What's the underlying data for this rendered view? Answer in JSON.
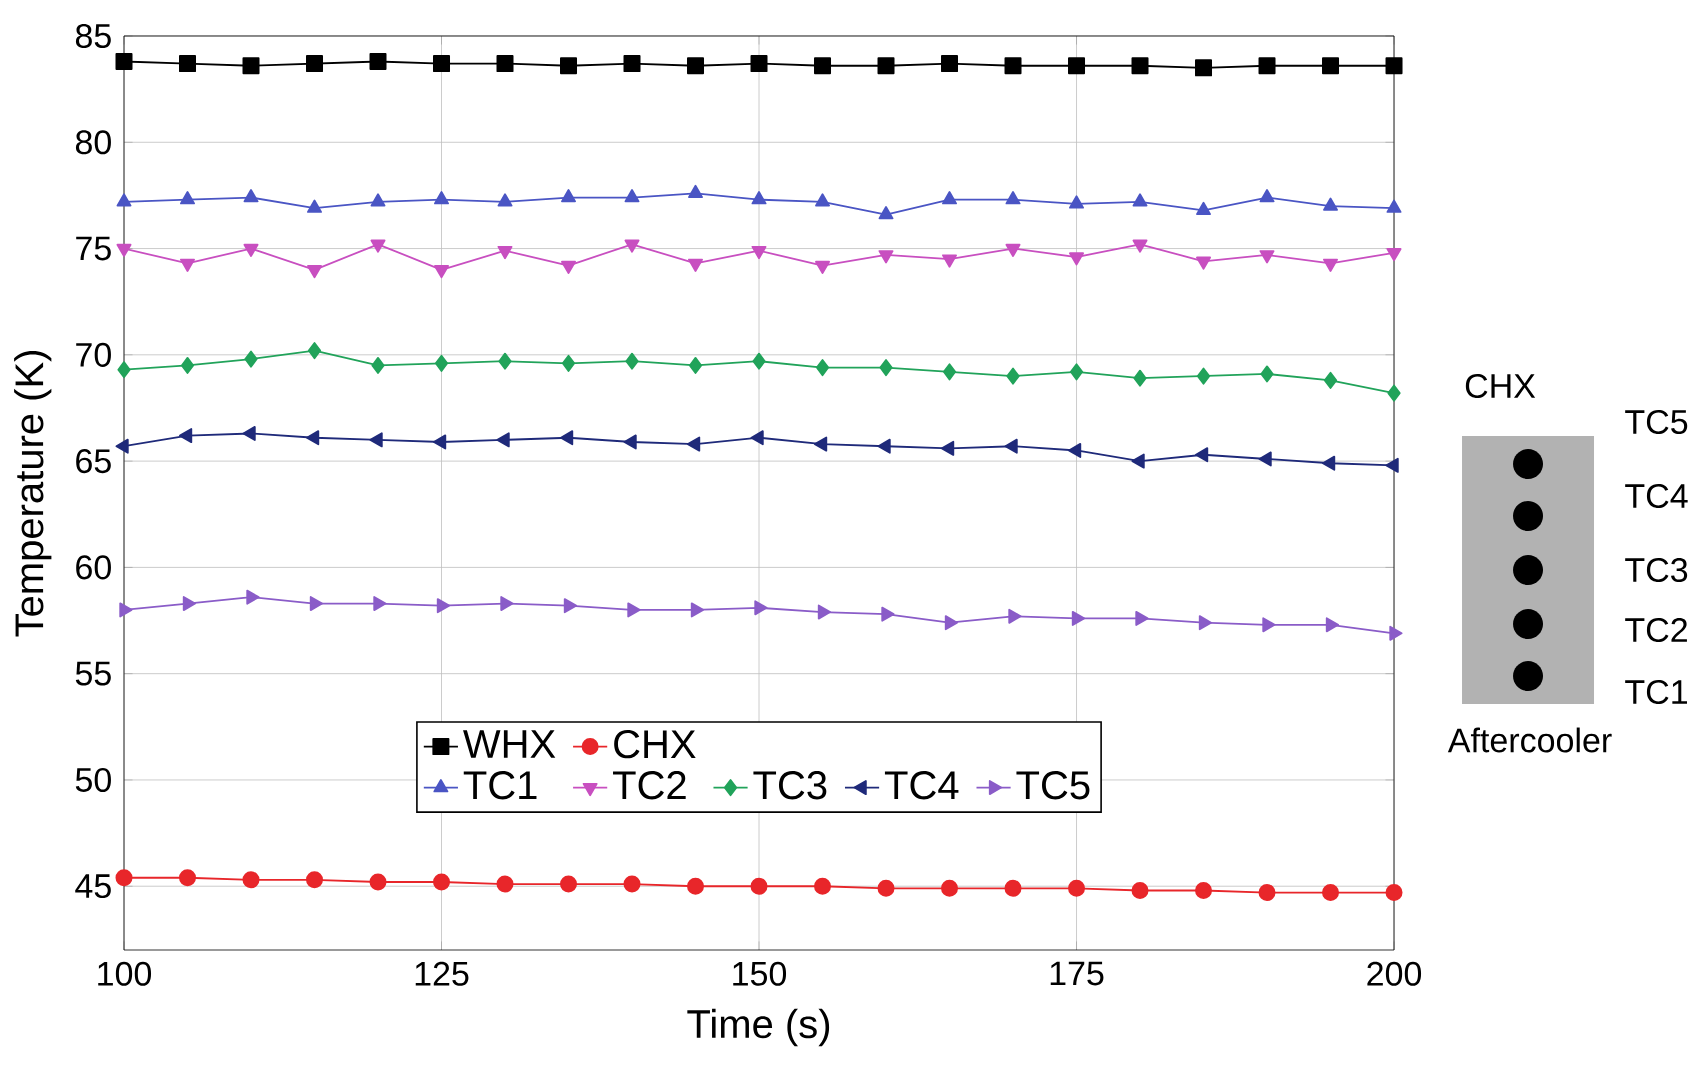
{
  "chart_data": {
    "type": "line",
    "xlabel": "Time (s)",
    "ylabel": "Temperature (K)",
    "x": [
      100,
      105,
      110,
      115,
      120,
      125,
      130,
      135,
      140,
      145,
      150,
      155,
      160,
      165,
      170,
      175,
      180,
      185,
      190,
      195,
      200
    ],
    "xlim": [
      100,
      200
    ],
    "xticks": [
      100,
      125,
      150,
      175,
      200
    ],
    "ylim": [
      42,
      85
    ],
    "yticks": [
      45,
      50,
      55,
      60,
      65,
      70,
      75,
      80,
      85
    ],
    "grid": true,
    "legend": "bottom",
    "series": [
      {
        "name": "WHX",
        "color": "#000000",
        "marker": "square",
        "values": [
          83.8,
          83.7,
          83.6,
          83.7,
          83.8,
          83.7,
          83.7,
          83.6,
          83.7,
          83.6,
          83.7,
          83.6,
          83.6,
          83.7,
          83.6,
          83.6,
          83.6,
          83.5,
          83.6,
          83.6,
          83.6
        ]
      },
      {
        "name": "CHX",
        "color": "#e8262a",
        "marker": "circle",
        "values": [
          45.4,
          45.4,
          45.3,
          45.3,
          45.2,
          45.2,
          45.1,
          45.1,
          45.1,
          45.0,
          45.0,
          45.0,
          44.9,
          44.9,
          44.9,
          44.9,
          44.8,
          44.8,
          44.7,
          44.7,
          44.7
        ]
      },
      {
        "name": "TC1",
        "color": "#4a55c4",
        "marker": "triangle",
        "values": [
          77.2,
          77.3,
          77.4,
          76.9,
          77.2,
          77.3,
          77.2,
          77.4,
          77.4,
          77.6,
          77.3,
          77.2,
          76.6,
          77.3,
          77.3,
          77.1,
          77.2,
          76.8,
          77.4,
          77.0,
          76.9
        ]
      },
      {
        "name": "TC2",
        "color": "#c84fc0",
        "marker": "triangle-down",
        "values": [
          75.0,
          74.3,
          75.0,
          74.0,
          75.2,
          74.0,
          74.9,
          74.2,
          75.2,
          74.3,
          74.9,
          74.2,
          74.7,
          74.5,
          75.0,
          74.6,
          75.2,
          74.4,
          74.7,
          74.3,
          74.8
        ]
      },
      {
        "name": "TC3",
        "color": "#21a35a",
        "marker": "diamond",
        "values": [
          69.3,
          69.5,
          69.8,
          70.2,
          69.5,
          69.6,
          69.7,
          69.6,
          69.7,
          69.5,
          69.7,
          69.4,
          69.4,
          69.2,
          69.0,
          69.2,
          68.9,
          69.0,
          69.1,
          68.8,
          68.2
        ]
      },
      {
        "name": "TC4",
        "color": "#1f2a7a",
        "marker": "triangle-left",
        "values": [
          65.7,
          66.2,
          66.3,
          66.1,
          66.0,
          65.9,
          66.0,
          66.1,
          65.9,
          65.8,
          66.1,
          65.8,
          65.7,
          65.6,
          65.7,
          65.5,
          65.0,
          65.3,
          65.1,
          64.9,
          64.8
        ]
      },
      {
        "name": "TC5",
        "color": "#8a5cc8",
        "marker": "triangle-right",
        "values": [
          58.0,
          58.3,
          58.6,
          58.3,
          58.3,
          58.2,
          58.3,
          58.2,
          58.0,
          58.0,
          58.1,
          57.9,
          57.8,
          57.4,
          57.7,
          57.6,
          57.6,
          57.4,
          57.3,
          57.3,
          56.9
        ]
      }
    ],
    "annotations": [
      "CHX",
      "TC5",
      "TC4",
      "TC3",
      "TC2",
      "TC1",
      "Aftercooler"
    ]
  }
}
